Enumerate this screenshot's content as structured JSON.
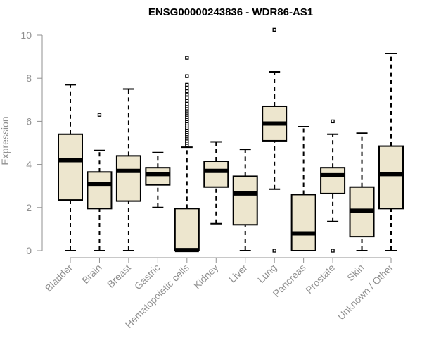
{
  "chart_data": {
    "type": "box",
    "title": "ENSG00000243836 - WDR86-AS1",
    "ylabel": "Expression",
    "xlabel": "",
    "ylim": [
      0,
      10
    ],
    "yticks": [
      0,
      2,
      4,
      6,
      8,
      10
    ],
    "grid": false,
    "legend": "none",
    "box_fill": "#ede6ce",
    "box_stroke": "#000000",
    "axis_color": "#909090",
    "categories": [
      "Bladder",
      "Brain",
      "Breast",
      "Gastric",
      "Hematopoietic cells",
      "Kidney",
      "Liver",
      "Lung",
      "Pancreas",
      "Prostate",
      "Skin",
      "Unknown / Other"
    ],
    "boxes": [
      {
        "min": 0.0,
        "q1": 2.35,
        "median": 4.2,
        "q3": 5.4,
        "max": 7.7,
        "outliers": []
      },
      {
        "min": 0.0,
        "q1": 1.95,
        "median": 3.1,
        "q3": 3.65,
        "max": 4.65,
        "outliers": [
          6.3
        ]
      },
      {
        "min": 0.0,
        "q1": 2.3,
        "median": 3.7,
        "q3": 4.4,
        "max": 7.5,
        "outliers": []
      },
      {
        "min": 2.0,
        "q1": 3.05,
        "median": 3.55,
        "q3": 3.85,
        "max": 4.55,
        "outliers": []
      },
      {
        "min": 0.0,
        "q1": 0.0,
        "median": 0.03,
        "q3": 1.95,
        "max": 4.8,
        "outliers": [
          4.9,
          5.0,
          5.1,
          5.2,
          5.3,
          5.4,
          5.5,
          5.6,
          5.7,
          5.8,
          5.9,
          6.0,
          6.1,
          6.2,
          6.3,
          6.4,
          6.5,
          6.6,
          6.7,
          6.8,
          6.95,
          7.1,
          7.25,
          7.4,
          7.55,
          7.7,
          8.1,
          8.95
        ]
      },
      {
        "min": 1.25,
        "q1": 2.95,
        "median": 3.7,
        "q3": 4.15,
        "max": 5.05,
        "outliers": []
      },
      {
        "min": 0.0,
        "q1": 1.2,
        "median": 2.65,
        "q3": 3.45,
        "max": 4.7,
        "outliers": []
      },
      {
        "min": 2.85,
        "q1": 5.1,
        "median": 5.9,
        "q3": 6.7,
        "max": 8.3,
        "outliers": [
          0.0,
          10.25
        ]
      },
      {
        "min": 0.0,
        "q1": 0.0,
        "median": 0.8,
        "q3": 2.6,
        "max": 5.75,
        "outliers": []
      },
      {
        "min": 1.35,
        "q1": 2.65,
        "median": 3.5,
        "q3": 3.85,
        "max": 5.4,
        "outliers": [
          0.0,
          6.0
        ]
      },
      {
        "min": 0.0,
        "q1": 0.65,
        "median": 1.85,
        "q3": 2.95,
        "max": 5.45,
        "outliers": []
      },
      {
        "min": 0.0,
        "q1": 1.95,
        "median": 3.55,
        "q3": 4.85,
        "max": 9.15,
        "outliers": []
      }
    ]
  }
}
